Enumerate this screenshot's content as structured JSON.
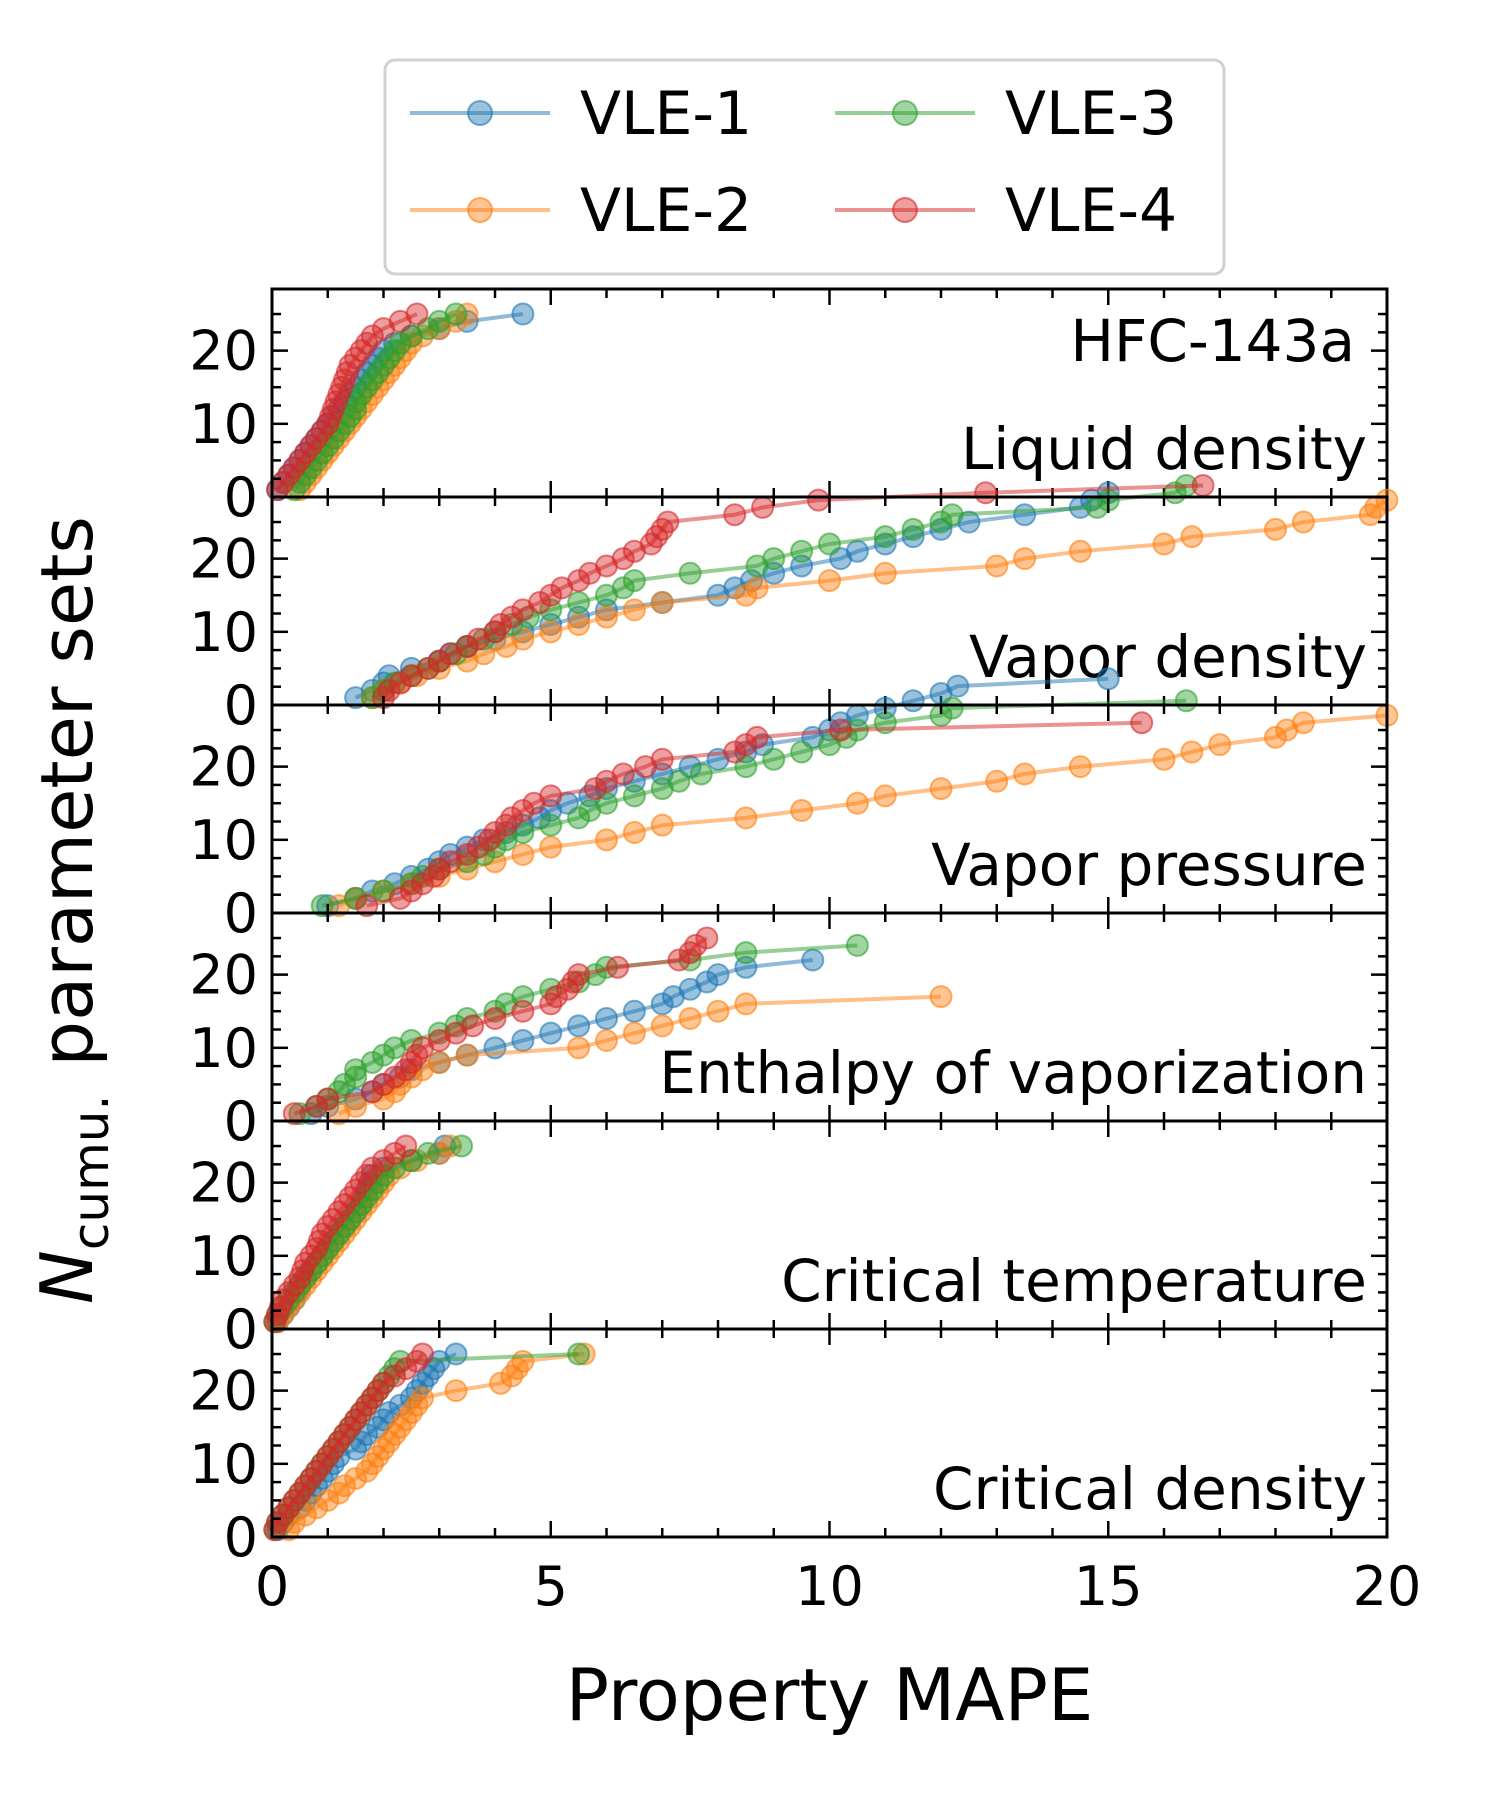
{
  "chart_data": {
    "type": "line",
    "title": "HFC-143a",
    "xlabel": "Property MAPE",
    "ylabel": "parameter sets",
    "ylabel_symbol": "N",
    "ylabel_subscript": "cumu.",
    "xlim": [
      0,
      20
    ],
    "ylim": [
      0,
      27
    ],
    "x_ticks": [
      "0",
      "5",
      "10",
      "15",
      "20"
    ],
    "y_ticks": [
      "0",
      "10",
      "20"
    ],
    "grid": false,
    "legend_position": "top-center",
    "series_styles": [
      {
        "name": "VLE-1",
        "color": "#1f77b4"
      },
      {
        "name": "VLE-2",
        "color": "#ff7f0e"
      },
      {
        "name": "VLE-3",
        "color": "#2ca02c"
      },
      {
        "name": "VLE-4",
        "color": "#d62728"
      }
    ],
    "panels": [
      {
        "label": "Liquid density",
        "series": [
          {
            "name": "VLE-1",
            "x": [
              0.1,
              0.2,
              0.3,
              0.4,
              0.5,
              0.6,
              0.7,
              0.8,
              0.9,
              1.0,
              1.1,
              1.2,
              1.3,
              1.4,
              1.5,
              1.6,
              1.7,
              1.8,
              1.9,
              2.0,
              2.2,
              2.5,
              3.0,
              3.5,
              4.5
            ]
          },
          {
            "name": "VLE-2",
            "x": [
              0.5,
              0.6,
              0.7,
              0.8,
              0.9,
              1.0,
              1.1,
              1.2,
              1.3,
              1.4,
              1.5,
              1.6,
              1.7,
              1.8,
              1.9,
              2.0,
              2.1,
              2.2,
              2.3,
              2.4,
              2.5,
              2.7,
              3.0,
              3.3,
              3.5
            ]
          },
          {
            "name": "VLE-3",
            "x": [
              0.4,
              0.5,
              0.6,
              0.7,
              0.8,
              0.9,
              1.0,
              1.1,
              1.2,
              1.3,
              1.4,
              1.5,
              1.5,
              1.6,
              1.7,
              1.8,
              1.9,
              2.0,
              2.1,
              2.2,
              2.3,
              2.5,
              2.8,
              3.0,
              3.3
            ]
          },
          {
            "name": "VLE-4",
            "x": [
              0.1,
              0.2,
              0.3,
              0.4,
              0.5,
              0.6,
              0.7,
              0.8,
              0.9,
              1.0,
              1.05,
              1.1,
              1.15,
              1.2,
              1.25,
              1.3,
              1.35,
              1.4,
              1.5,
              1.6,
              1.7,
              1.8,
              2.0,
              2.3,
              2.6
            ]
          }
        ]
      },
      {
        "label": "Vapor density",
        "series": [
          {
            "name": "VLE-1",
            "x": [
              1.5,
              1.8,
              2.0,
              2.1,
              2.5,
              3.0,
              3.2,
              3.5,
              4.0,
              4.5,
              5.0,
              5.5,
              6.0,
              7.0,
              8.0,
              8.3,
              8.6,
              9.0,
              9.5,
              10.2,
              10.5,
              11.0,
              11.5,
              12.0,
              12.5,
              13.5,
              14.5,
              14.7,
              15.0
            ]
          },
          {
            "name": "VLE-2",
            "x": [
              1.8,
              2.0,
              2.3,
              2.6,
              3.0,
              3.5,
              3.8,
              4.2,
              4.5,
              5.0,
              5.5,
              6.0,
              6.5,
              7.0,
              8.5,
              8.7,
              10.0,
              11.0,
              13.0,
              13.5,
              14.5,
              16.0,
              16.5,
              18.0,
              18.5,
              19.7,
              19.8,
              20.0
            ]
          },
          {
            "name": "VLE-3",
            "x": [
              1.8,
              2.0,
              2.2,
              2.5,
              2.8,
              3.0,
              3.3,
              3.5,
              3.8,
              4.0,
              4.3,
              4.6,
              5.0,
              5.5,
              6.0,
              6.3,
              6.5,
              7.5,
              8.7,
              9.0,
              9.5,
              10.0,
              11.0,
              11.5,
              12.0,
              12.2,
              14.8,
              15.0,
              16.2,
              16.4
            ]
          },
          {
            "name": "VLE-4",
            "x": [
              2.0,
              2.1,
              2.3,
              2.5,
              2.8,
              3.0,
              3.2,
              3.5,
              3.7,
              4.0,
              4.1,
              4.3,
              4.5,
              4.8,
              5.0,
              5.2,
              5.5,
              5.7,
              6.0,
              6.3,
              6.5,
              6.8,
              6.9,
              7.0,
              7.1,
              8.3,
              8.8,
              9.8,
              12.8,
              16.7
            ]
          }
        ]
      },
      {
        "label": "Vapor pressure",
        "series": [
          {
            "name": "VLE-1",
            "x": [
              1.0,
              1.5,
              1.8,
              2.2,
              2.5,
              2.8,
              3.0,
              3.2,
              3.5,
              3.8,
              4.2,
              4.5,
              4.8,
              5.0,
              5.3,
              5.7,
              6.0,
              6.5,
              7.0,
              7.5,
              8.0,
              8.5,
              8.8,
              9.7,
              10.0,
              10.2,
              10.5,
              11.0,
              11.5,
              12.0,
              12.3,
              15.0
            ]
          },
          {
            "name": "VLE-2",
            "x": [
              1.2,
              1.5,
              2.0,
              2.5,
              3.0,
              3.5,
              4.0,
              4.5,
              5.0,
              6.0,
              6.5,
              7.0,
              8.5,
              9.5,
              10.5,
              11.0,
              12.0,
              13.0,
              13.5,
              14.5,
              16.0,
              16.5,
              17.0,
              18.0,
              18.2,
              18.5,
              20.0
            ]
          },
          {
            "name": "VLE-3",
            "x": [
              0.9,
              1.5,
              2.0,
              2.5,
              2.7,
              3.0,
              3.5,
              3.8,
              4.0,
              4.2,
              4.5,
              5.0,
              5.5,
              5.7,
              6.0,
              6.5,
              7.0,
              7.3,
              7.7,
              8.5,
              9.0,
              9.5,
              10.0,
              10.3,
              10.5,
              11.0,
              12.0,
              12.2,
              16.4
            ]
          },
          {
            "name": "VLE-4",
            "x": [
              1.7,
              2.3,
              2.5,
              2.7,
              2.9,
              3.0,
              3.2,
              3.5,
              3.7,
              3.9,
              4.0,
              4.2,
              4.3,
              4.5,
              4.7,
              5.0,
              5.8,
              6.0,
              6.3,
              6.7,
              7.0,
              8.3,
              8.5,
              8.7,
              10.2,
              15.6
            ]
          }
        ]
      },
      {
        "label": "Enthalpy of vaporization",
        "series": [
          {
            "name": "VLE-1",
            "x": [
              0.7,
              1.0,
              1.5,
              1.8,
              2.0,
              2.3,
              2.5,
              3.0,
              3.5,
              4.0,
              4.5,
              5.0,
              5.5,
              6.0,
              6.5,
              7.0,
              7.2,
              7.5,
              7.8,
              8.0,
              8.5,
              9.7
            ]
          },
          {
            "name": "VLE-2",
            "x": [
              1.2,
              1.5,
              2.0,
              2.2,
              2.3,
              2.5,
              2.7,
              3.0,
              3.5,
              5.5,
              6.0,
              6.5,
              7.0,
              7.5,
              8.0,
              8.5,
              12.0
            ]
          },
          {
            "name": "VLE-3",
            "x": [
              0.5,
              0.8,
              1.0,
              1.2,
              1.3,
              1.5,
              1.5,
              1.8,
              2.0,
              2.2,
              2.5,
              3.0,
              3.3,
              3.5,
              4.0,
              4.2,
              4.5,
              5.0,
              5.5,
              5.8,
              6.0,
              7.5,
              8.5,
              10.5
            ]
          },
          {
            "name": "VLE-4",
            "x": [
              0.4,
              0.8,
              1.0,
              1.8,
              2.0,
              2.2,
              2.4,
              2.5,
              2.6,
              2.7,
              3.0,
              3.3,
              3.6,
              4.0,
              4.5,
              5.0,
              5.1,
              5.3,
              5.4,
              5.5,
              6.2,
              7.3,
              7.5,
              7.6,
              7.8
            ]
          }
        ]
      },
      {
        "label": "Critical temperature",
        "series": [
          {
            "name": "VLE-1",
            "x": [
              0.1,
              0.2,
              0.3,
              0.4,
              0.45,
              0.5,
              0.6,
              0.7,
              0.8,
              0.9,
              1.0,
              1.1,
              1.2,
              1.3,
              1.4,
              1.5,
              1.6,
              1.65,
              1.7,
              1.75,
              1.8,
              2.0,
              2.5,
              3.0,
              3.1
            ]
          },
          {
            "name": "VLE-2",
            "x": [
              0.1,
              0.2,
              0.3,
              0.4,
              0.5,
              0.6,
              0.7,
              0.8,
              0.9,
              1.0,
              1.1,
              1.2,
              1.3,
              1.4,
              1.5,
              1.6,
              1.7,
              1.8,
              1.9,
              2.0,
              2.1,
              2.3,
              2.6,
              3.0,
              3.2
            ]
          },
          {
            "name": "VLE-3",
            "x": [
              0.05,
              0.1,
              0.2,
              0.3,
              0.4,
              0.5,
              0.6,
              0.7,
              0.8,
              0.9,
              1.0,
              1.1,
              1.2,
              1.3,
              1.4,
              1.5,
              1.6,
              1.7,
              1.8,
              1.9,
              2.0,
              2.2,
              2.5,
              2.8,
              3.4
            ]
          },
          {
            "name": "VLE-4",
            "x": [
              0.05,
              0.1,
              0.15,
              0.2,
              0.3,
              0.4,
              0.5,
              0.55,
              0.6,
              0.7,
              0.8,
              0.85,
              0.9,
              1.0,
              1.1,
              1.2,
              1.3,
              1.4,
              1.5,
              1.6,
              1.7,
              1.8,
              2.0,
              2.2,
              2.4
            ]
          }
        ]
      },
      {
        "label": "Critical density",
        "series": [
          {
            "name": "VLE-1",
            "x": [
              0.1,
              0.2,
              0.3,
              0.5,
              0.6,
              0.7,
              0.8,
              0.9,
              1.0,
              1.1,
              1.2,
              1.5,
              1.6,
              1.7,
              1.9,
              2.0,
              2.1,
              2.3,
              2.5,
              2.6,
              2.7,
              2.8,
              2.9,
              3.0,
              3.3
            ]
          },
          {
            "name": "VLE-2",
            "x": [
              0.3,
              0.4,
              0.6,
              0.8,
              1.0,
              1.2,
              1.3,
              1.5,
              1.7,
              1.8,
              1.9,
              2.0,
              2.1,
              2.2,
              2.3,
              2.4,
              2.5,
              2.6,
              2.7,
              3.3,
              4.1,
              4.3,
              4.4,
              4.5,
              5.6
            ]
          },
          {
            "name": "VLE-3",
            "x": [
              0.05,
              0.1,
              0.2,
              0.3,
              0.4,
              0.5,
              0.6,
              0.7,
              0.8,
              0.9,
              1.0,
              1.1,
              1.2,
              1.3,
              1.4,
              1.5,
              1.6,
              1.7,
              1.8,
              1.9,
              2.0,
              2.1,
              2.2,
              2.3,
              5.5
            ]
          },
          {
            "name": "VLE-4",
            "x": [
              0.05,
              0.1,
              0.2,
              0.3,
              0.4,
              0.5,
              0.6,
              0.7,
              0.8,
              0.9,
              1.0,
              1.1,
              1.2,
              1.3,
              1.4,
              1.5,
              1.6,
              1.7,
              1.8,
              1.9,
              2.0,
              2.2,
              2.4,
              2.6,
              2.7
            ]
          }
        ]
      }
    ]
  }
}
